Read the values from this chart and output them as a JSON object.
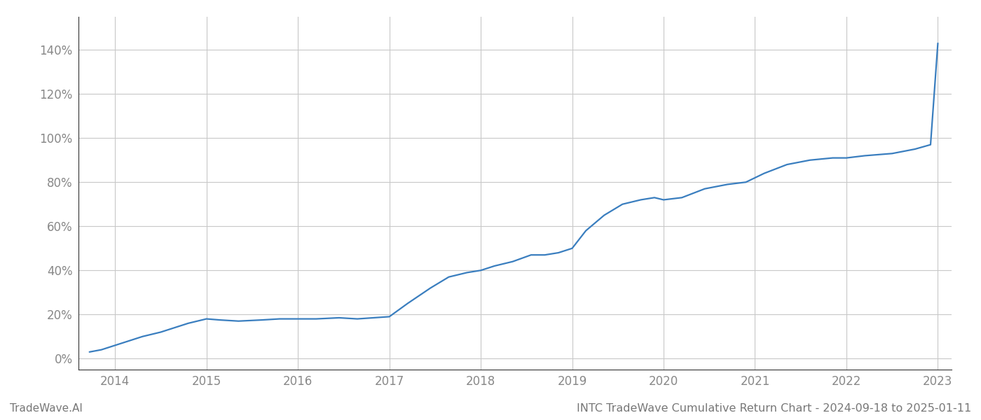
{
  "title": "INTC TradeWave Cumulative Return Chart - 2024-09-18 to 2025-01-11",
  "watermark": "TradeWave.AI",
  "line_color": "#3a7ebf",
  "background_color": "#ffffff",
  "grid_color": "#c8c8c8",
  "x_years": [
    2014,
    2015,
    2016,
    2017,
    2018,
    2019,
    2020,
    2021,
    2022,
    2023
  ],
  "x_data": [
    2013.72,
    2013.85,
    2014.0,
    2014.15,
    2014.3,
    2014.5,
    2014.65,
    2014.8,
    2015.0,
    2015.15,
    2015.35,
    2015.6,
    2015.8,
    2016.0,
    2016.2,
    2016.45,
    2016.65,
    2017.0,
    2017.2,
    2017.45,
    2017.65,
    2017.85,
    2018.0,
    2018.15,
    2018.35,
    2018.55,
    2018.7,
    2018.85,
    2019.0,
    2019.15,
    2019.35,
    2019.55,
    2019.75,
    2019.9,
    2020.0,
    2020.2,
    2020.45,
    2020.7,
    2020.9,
    2021.1,
    2021.35,
    2021.6,
    2021.85,
    2022.0,
    2022.2,
    2022.5,
    2022.75,
    2022.92,
    2023.0
  ],
  "y_data": [
    3,
    4,
    6,
    8,
    10,
    12,
    14,
    16,
    18,
    17.5,
    17,
    17.5,
    18,
    18,
    18,
    18.5,
    18,
    19,
    25,
    32,
    37,
    39,
    40,
    42,
    44,
    47,
    47,
    48,
    50,
    58,
    65,
    70,
    72,
    73,
    72,
    73,
    77,
    79,
    80,
    84,
    88,
    90,
    91,
    91,
    92,
    93,
    95,
    97,
    143
  ],
  "ylim": [
    -5,
    155
  ],
  "yticks": [
    0,
    20,
    40,
    60,
    80,
    100,
    120,
    140
  ],
  "xlim": [
    2013.6,
    2023.15
  ],
  "line_width": 1.6,
  "title_fontsize": 11.5,
  "watermark_fontsize": 11,
  "tick_fontsize": 12,
  "tick_color": "#888888",
  "spine_color": "#333333",
  "footer_color": "#777777"
}
